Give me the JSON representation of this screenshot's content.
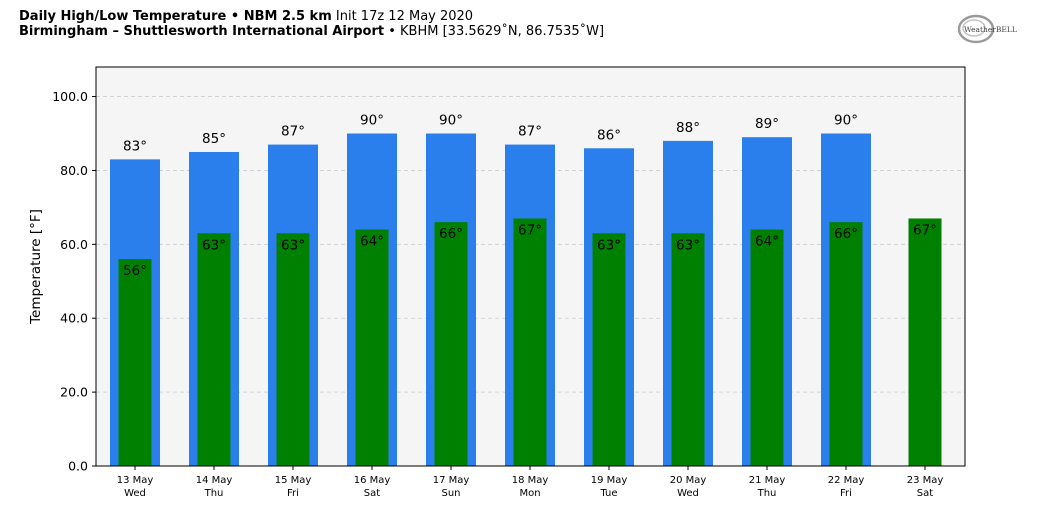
{
  "header": {
    "line1_bold": "Daily High/Low Temperature • NBM 2.5 km",
    "line1_rest": "Init 17z 12 May 2020",
    "line2_bold": "Birmingham – Shuttlesworth International Airport",
    "line2_rest": "• KBHM [33.5629˚N, 86.7535˚W]"
  },
  "logo": {
    "text": "WeatherBELL",
    "icon": "weatherbell-logo"
  },
  "colors": {
    "high": "#2a7fec",
    "low": "#008000",
    "plot_bg": "#f5f5f5",
    "grid": "#cccccc"
  },
  "chart_data": {
    "type": "bar",
    "ylabel": "Temperature [°F]",
    "ylim": [
      0,
      108
    ],
    "yticks": [
      "0.0",
      "20.0",
      "40.0",
      "60.0",
      "80.0",
      "100.0"
    ],
    "grid": true,
    "categories": [
      {
        "date": "13 May",
        "day": "Wed"
      },
      {
        "date": "14 May",
        "day": "Thu"
      },
      {
        "date": "15 May",
        "day": "Fri"
      },
      {
        "date": "16 May",
        "day": "Sat"
      },
      {
        "date": "17 May",
        "day": "Sun"
      },
      {
        "date": "18 May",
        "day": "Mon"
      },
      {
        "date": "19 May",
        "day": "Tue"
      },
      {
        "date": "20 May",
        "day": "Wed"
      },
      {
        "date": "21 May",
        "day": "Thu"
      },
      {
        "date": "22 May",
        "day": "Fri"
      },
      {
        "date": "23 May",
        "day": "Sat"
      }
    ],
    "series": [
      {
        "values": [
          83,
          85,
          87,
          90,
          90,
          87,
          86,
          88,
          89,
          90,
          null
        ],
        "labels": [
          "83°",
          "85°",
          "87°",
          "90°",
          "90°",
          "87°",
          "86°",
          "88°",
          "89°",
          "90°",
          ""
        ]
      },
      {
        "values": [
          56,
          63,
          63,
          64,
          66,
          67,
          63,
          63,
          64,
          66,
          67
        ],
        "labels": [
          "56°",
          "63°",
          "63°",
          "64°",
          "66°",
          "67°",
          "63°",
          "63°",
          "64°",
          "66°",
          "67°"
        ]
      }
    ]
  }
}
